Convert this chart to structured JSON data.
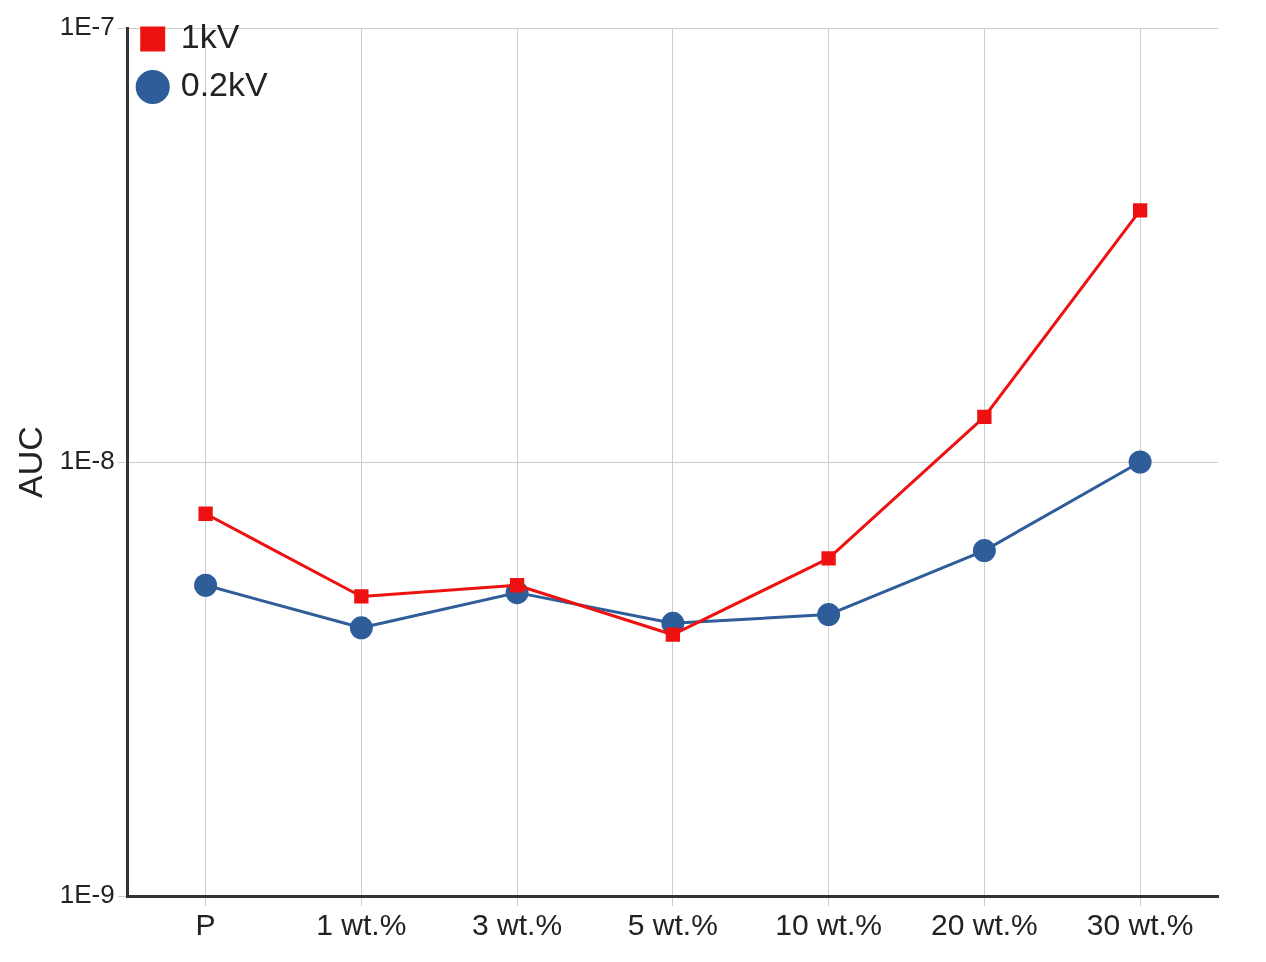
{
  "chart_data": {
    "type": "line",
    "ylabel": "AUC",
    "categories": [
      "P",
      "1 wt.%",
      "3 wt.%",
      "5 wt.%",
      "10 wt.%",
      "20 wt.%",
      "30 wt.%"
    ],
    "series": [
      {
        "name": "1kV",
        "color": "#ee1111",
        "marker": "square",
        "values": [
          7.6e-09,
          4.9e-09,
          5.2e-09,
          4e-09,
          6e-09,
          1.27e-08,
          3.8e-08
        ]
      },
      {
        "name": "0.2kV",
        "color": "#2e5d9a",
        "marker": "circle",
        "values": [
          5.2e-09,
          4.15e-09,
          5e-09,
          4.25e-09,
          4.45e-09,
          6.25e-09,
          1e-08
        ]
      }
    ],
    "log": "y",
    "ylim": [
      1e-09,
      1e-07
    ],
    "yticks": [
      {
        "value": 1e-09,
        "label": "1E-9"
      },
      {
        "value": 1e-08,
        "label": "1E-8"
      },
      {
        "value": 1e-07,
        "label": "1E-7"
      }
    ],
    "grid": true,
    "legend": "top left",
    "line_style": "solid"
  }
}
